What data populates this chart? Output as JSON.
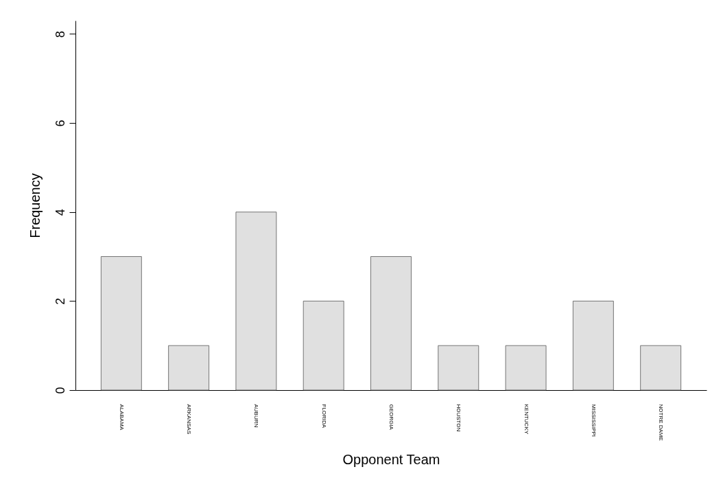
{
  "chart_data": {
    "type": "bar",
    "xlabel": "Opponent Team",
    "ylabel": "Frequency",
    "categories": [
      "ALABAMA",
      "ARKANSAS",
      "AUBURN",
      "FLORIDA",
      "GEORGIA",
      "HOUSTON",
      "KENTUCKY",
      "MISSISSIPPI",
      "NOTRE DAME"
    ],
    "values": [
      3,
      1,
      4,
      2,
      3,
      1,
      1,
      2,
      1
    ],
    "color": "#e0e0e0",
    "ylim": [
      0,
      8.3
    ],
    "yticks": [
      0,
      2,
      4,
      6,
      8
    ],
    "grid": false
  }
}
